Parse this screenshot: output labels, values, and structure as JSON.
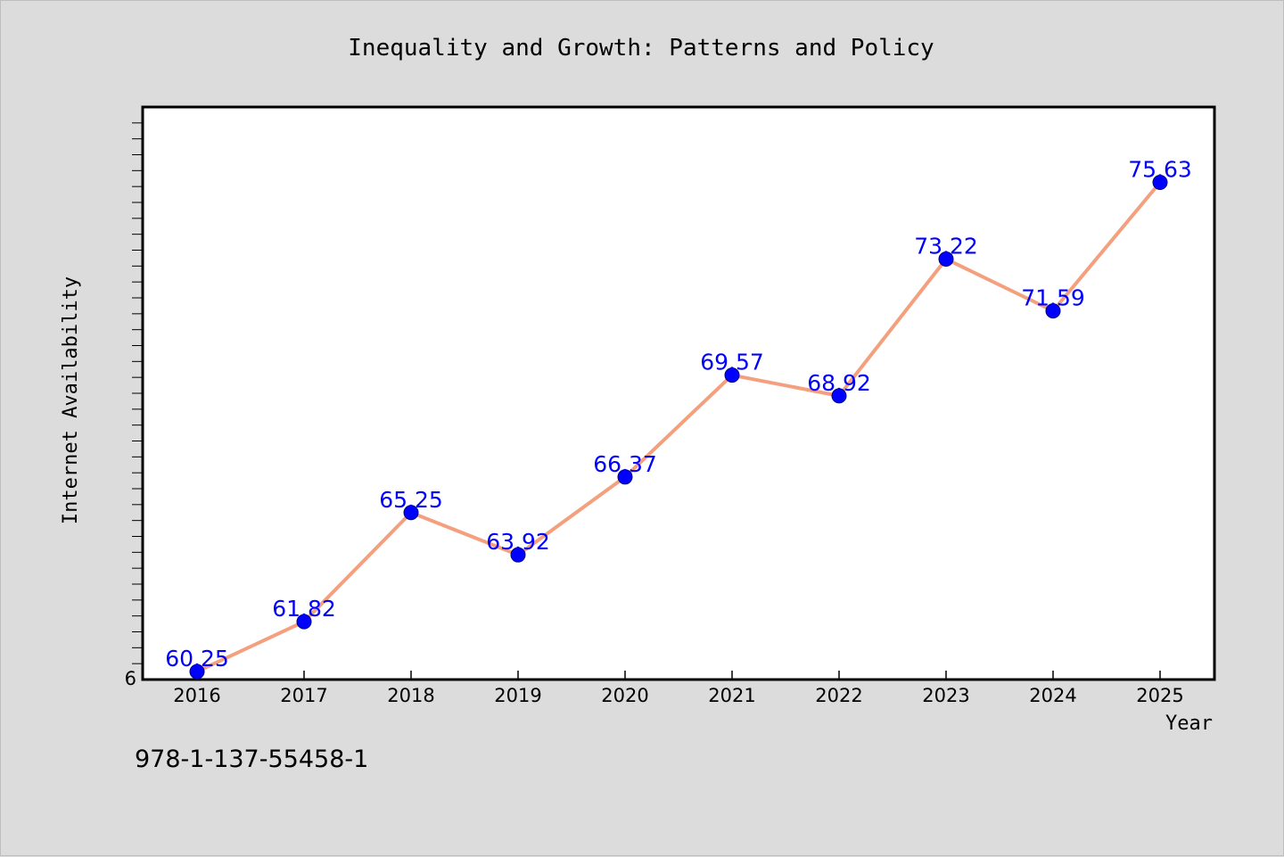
{
  "chart_data": {
    "type": "line",
    "title": "Inequality and Growth: Patterns and Policy",
    "xlabel": "Year",
    "ylabel": "Internet Availability",
    "categories": [
      "2016",
      "2017",
      "2018",
      "2019",
      "2020",
      "2021",
      "2022",
      "2023",
      "2024",
      "2025"
    ],
    "series": [
      {
        "values": [
          60.25,
          61.82,
          65.25,
          63.92,
          66.37,
          69.57,
          68.92,
          73.22,
          71.59,
          75.63
        ],
        "labels": [
          "60.25",
          "61.82",
          "65.25",
          "63.92",
          "66.37",
          "69.57",
          "68.92",
          "73.22",
          "71.59",
          "75.63"
        ]
      }
    ],
    "ylim": [
      60,
      78
    ],
    "y_tick_label": "6",
    "grid": false,
    "line_color": "#f4a07e",
    "marker_color": "#0000ff",
    "label_color": "#0000ff",
    "plot_background": "#ffffff"
  },
  "footer": {
    "isbn": "978-1-137-55458-1"
  }
}
